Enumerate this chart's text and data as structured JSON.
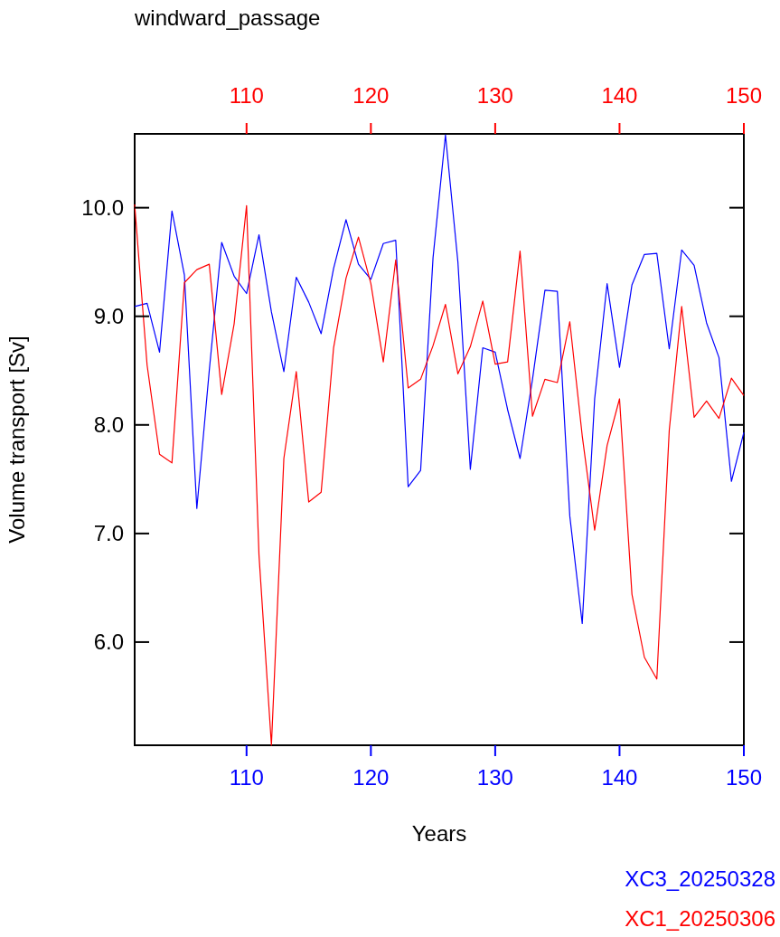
{
  "chart_data": {
    "type": "line",
    "title": "windward_passage",
    "xlabel": "Years",
    "ylabel": "Volume transport [Sv]",
    "x": [
      101,
      102,
      103,
      104,
      105,
      106,
      107,
      108,
      109,
      110,
      111,
      112,
      113,
      114,
      115,
      116,
      117,
      118,
      119,
      120,
      121,
      122,
      123,
      124,
      125,
      126,
      127,
      128,
      129,
      130,
      131,
      132,
      133,
      134,
      135,
      136,
      137,
      138,
      139,
      140,
      141,
      142,
      143,
      144,
      145,
      146,
      147,
      148,
      149,
      150
    ],
    "xlim": [
      101,
      150
    ],
    "xticks": [
      110,
      120,
      130,
      140,
      150
    ],
    "x2lim": [
      101,
      150
    ],
    "x2ticks": [
      110,
      120,
      130,
      140,
      150
    ],
    "ylim": [
      5.05,
      10.68
    ],
    "yticks": [
      {
        "value": 6,
        "label": "6.0"
      },
      {
        "value": 7,
        "label": "7.0"
      },
      {
        "value": 8,
        "label": "8.0"
      },
      {
        "value": 9,
        "label": "9.0"
      },
      {
        "value": 10,
        "label": "10.0"
      }
    ],
    "legend": "bottom right",
    "grid": false,
    "series": [
      {
        "name": "XC3_20250328",
        "color": "#0000ff",
        "values": [
          9.09,
          9.12,
          8.67,
          9.97,
          9.38,
          7.23,
          8.5,
          9.68,
          9.37,
          9.21,
          9.75,
          9.04,
          8.49,
          9.36,
          9.13,
          8.84,
          9.44,
          9.89,
          9.48,
          9.34,
          9.67,
          9.7,
          7.43,
          7.58,
          9.54,
          10.67,
          9.5,
          7.59,
          8.71,
          8.67,
          8.14,
          7.69,
          8.42,
          9.24,
          9.23,
          7.16,
          6.17,
          8.24,
          9.3,
          8.53,
          9.29,
          9.57,
          9.58,
          8.7,
          9.61,
          9.47,
          8.94,
          8.62,
          7.48,
          7.93
        ]
      },
      {
        "name": "XC1_20250306",
        "color": "#ff0000",
        "axis": "x2",
        "values": [
          10.03,
          8.55,
          7.73,
          7.65,
          9.31,
          9.43,
          9.48,
          8.28,
          8.93,
          10.02,
          6.8,
          5.05,
          7.69,
          8.49,
          7.29,
          7.38,
          8.71,
          9.35,
          9.73,
          9.3,
          8.58,
          9.52,
          8.34,
          8.42,
          8.73,
          9.11,
          8.47,
          8.72,
          9.14,
          8.56,
          8.58,
          9.6,
          8.08,
          8.42,
          8.39,
          8.95,
          7.9,
          7.03,
          7.81,
          8.24,
          6.44,
          5.86,
          5.66,
          7.95,
          9.09,
          8.07,
          8.22,
          8.06,
          8.43,
          8.27
        ]
      }
    ]
  }
}
